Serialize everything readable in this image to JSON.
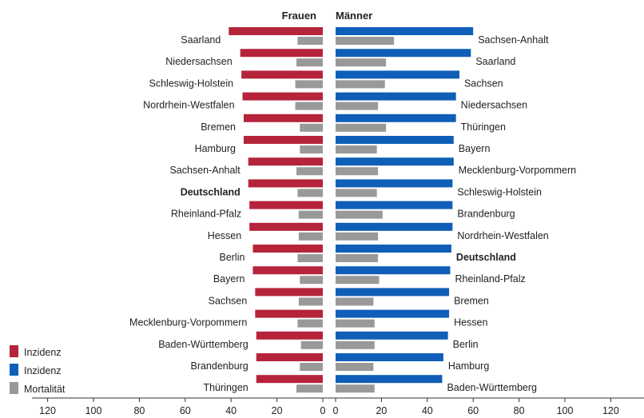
{
  "chart_data": {
    "type": "bar",
    "panels": [
      {
        "name": "Frauen",
        "side": "left",
        "categories": [
          "Saarland",
          "Niedersachsen",
          "Schleswig-Holstein",
          "Nordrhein-Westfalen",
          "Bremen",
          "Hamburg",
          "Sachsen-Anhalt",
          "Deutschland",
          "Rheinland-Pfalz",
          "Hessen",
          "Berlin",
          "Bayern",
          "Sachsen",
          "Mecklenburg-Vorpommern",
          "Baden-Württemberg",
          "Brandenburg",
          "Thüringen"
        ],
        "series": [
          {
            "name": "Inzidenz",
            "color": "#b5243a",
            "values": [
              41,
              36,
              35.5,
              35,
              34.5,
              34.5,
              32.5,
              32.5,
              32,
              32,
              30.5,
              30.5,
              29.5,
              29.5,
              29,
              29,
              29
            ]
          },
          {
            "name": "Mortalität",
            "color": "#999999",
            "values": [
              11,
              11.5,
              12,
              12,
              10,
              10,
              11.5,
              11,
              10.5,
              10.5,
              11,
              10,
              10.5,
              11,
              9.5,
              10,
              11.5
            ]
          }
        ]
      },
      {
        "name": "Männer",
        "side": "right",
        "categories": [
          "Sachsen-Anhalt",
          "Saarland",
          "Sachsen",
          "Niedersachsen",
          "Thüringen",
          "Bayern",
          "Mecklenburg-Vorpommern",
          "Schleswig-Holstein",
          "Brandenburg",
          "Nordrhein-Westfalen",
          "Deutschland",
          "Rheinland-Pfalz",
          "Bremen",
          "Hessen",
          "Berlin",
          "Hamburg",
          "Baden-Württemberg"
        ],
        "series": [
          {
            "name": "Inzidenz",
            "color": "#0f5fb8",
            "values": [
              60,
              59,
              54,
              52.5,
              52.5,
              51.5,
              51.5,
              51,
              51,
              51,
              50.5,
              50,
              49.5,
              49.5,
              49,
              47,
              46.5
            ]
          },
          {
            "name": "Mortalität",
            "color": "#999999",
            "values": [
              25.5,
              22,
              21.5,
              18.5,
              22,
              18,
              18.5,
              18,
              20.5,
              18.5,
              18.5,
              19,
              16.5,
              17,
              17,
              16.5,
              17
            ]
          }
        ]
      }
    ],
    "bold_categories": [
      "Deutschland"
    ],
    "xticks_left": [
      "120",
      "100",
      "80",
      "60",
      "40",
      "20",
      "0"
    ],
    "xticks_right": [
      "0",
      "20",
      "40",
      "60",
      "80",
      "100",
      "120"
    ],
    "xlim": [
      0,
      130
    ],
    "legend": {
      "placement": "bottom-left",
      "entries": [
        {
          "label": "Inzidenz",
          "color": "#b5243a"
        },
        {
          "label": "Inzidenz",
          "color": "#0f5fb8"
        },
        {
          "label": "Mortalität",
          "color": "#999999"
        }
      ]
    }
  }
}
